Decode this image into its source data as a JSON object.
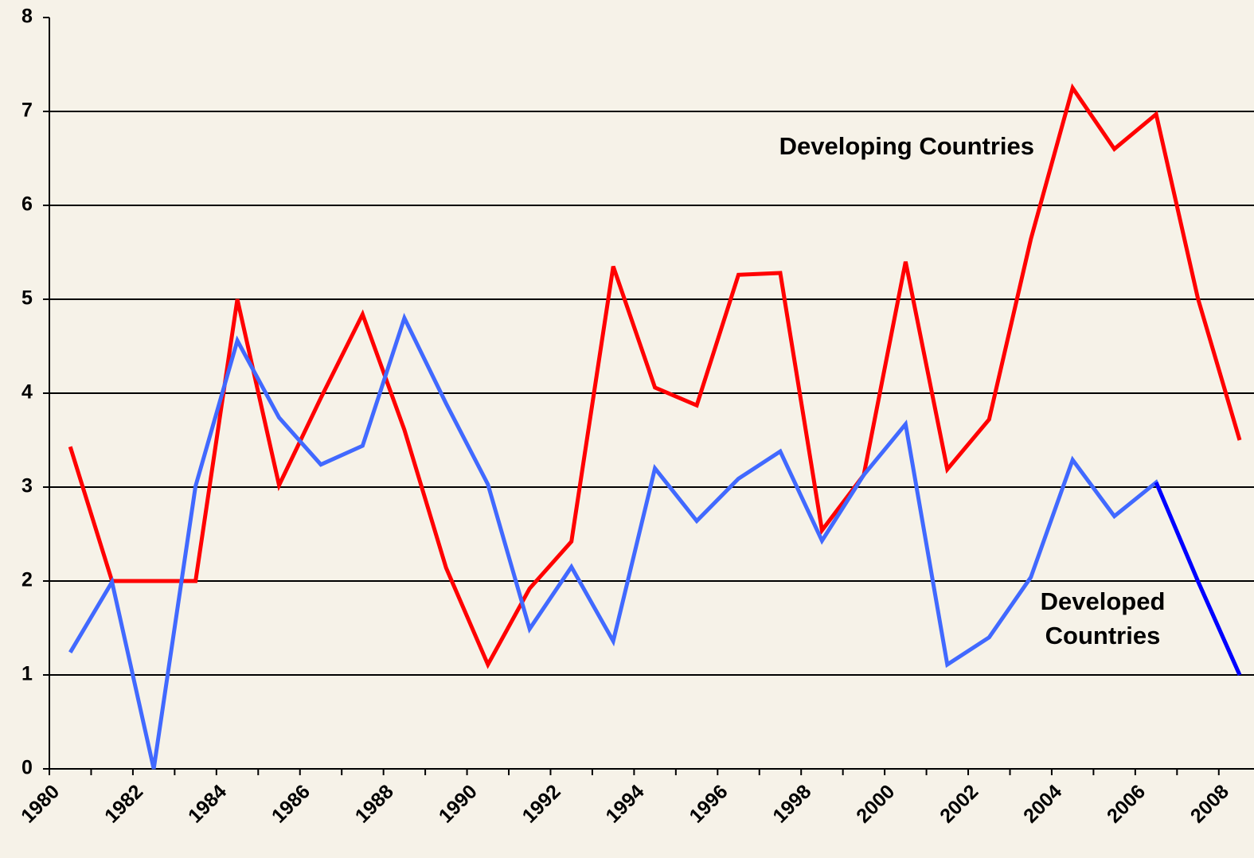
{
  "chart_data": {
    "type": "line",
    "categories": [
      "1980",
      null,
      "1982",
      null,
      "1984",
      null,
      "1986",
      null,
      "1988",
      null,
      "1990",
      null,
      "1992",
      null,
      "1994",
      null,
      "1996",
      null,
      "1998",
      null,
      "2000",
      null,
      "2002",
      null,
      "2004",
      null,
      "2006",
      null,
      "2008"
    ],
    "series": [
      {
        "name": "Developing Countries",
        "color": "#ff0000",
        "values": [
          3.43,
          2.0,
          2.0,
          2.0,
          5.0,
          3.02,
          3.95,
          4.84,
          3.61,
          2.14,
          1.11,
          1.92,
          2.42,
          5.35,
          4.06,
          3.87,
          5.26,
          5.28,
          2.54,
          3.13,
          5.4,
          3.19,
          3.72,
          5.64,
          7.25,
          6.6,
          6.97,
          5.01,
          3.5
        ]
      },
      {
        "name": "Developed Countries",
        "color": "#4169ff",
        "values": [
          1.24,
          1.99,
          0,
          3.01,
          4.56,
          3.74,
          3.24,
          3.44,
          4.8,
          3.89,
          3.03,
          1.49,
          2.15,
          1.36,
          3.2,
          2.64,
          3.09,
          3.38,
          2.43,
          3.13,
          3.67,
          1.11,
          1.4,
          2.04,
          3.29,
          2.69,
          3.05,
          2.0,
          1.0
        ]
      },
      {
        "color": "#0000ff",
        "values": [
          null,
          null,
          null,
          null,
          null,
          null,
          null,
          null,
          null,
          null,
          null,
          null,
          null,
          null,
          null,
          null,
          null,
          null,
          null,
          null,
          null,
          null,
          null,
          null,
          null,
          null,
          3.05,
          2.0,
          1.0
        ]
      }
    ],
    "ylim": [
      0,
      8
    ],
    "yticks": [
      0,
      1,
      2,
      3,
      4,
      5,
      6,
      7,
      8
    ],
    "grid": true
  }
}
